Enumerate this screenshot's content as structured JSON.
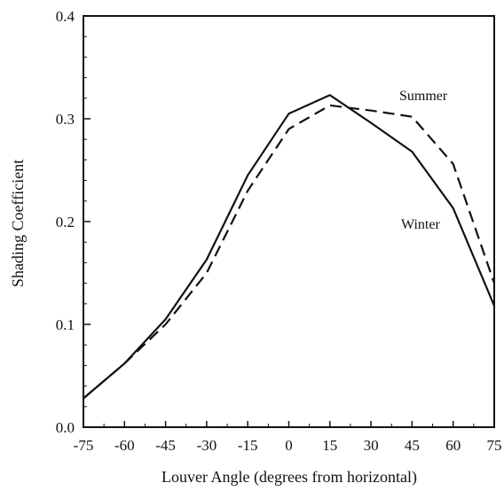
{
  "chart_data": {
    "type": "line",
    "title": "",
    "xlabel": "Louver Angle (degrees from horizontal)",
    "ylabel": "Shading Coefficient",
    "x": [
      -75,
      -60,
      -45,
      -30,
      -15,
      0,
      15,
      30,
      45,
      60,
      75
    ],
    "x_ticks": [
      "-75",
      "-60",
      "-45",
      "-30",
      "-15",
      "0",
      "15",
      "30",
      "45",
      "60",
      "75"
    ],
    "y_ticks": [
      "0.0",
      "0.1",
      "0.2",
      "0.3",
      "0.4"
    ],
    "xlim": [
      -75,
      75
    ],
    "ylim": [
      0,
      0.4
    ],
    "grid": false,
    "series": [
      {
        "name": "Winter",
        "style": "solid",
        "color": "#111111",
        "values": [
          0.028,
          0.062,
          0.105,
          0.163,
          0.245,
          0.305,
          0.323,
          0.296,
          0.268,
          0.213,
          0.118
        ]
      },
      {
        "name": "Summer",
        "style": "dashed",
        "color": "#111111",
        "values": [
          0.028,
          0.062,
          0.1,
          0.15,
          0.23,
          0.29,
          0.313,
          0.308,
          0.302,
          0.256,
          0.14
        ]
      }
    ]
  }
}
